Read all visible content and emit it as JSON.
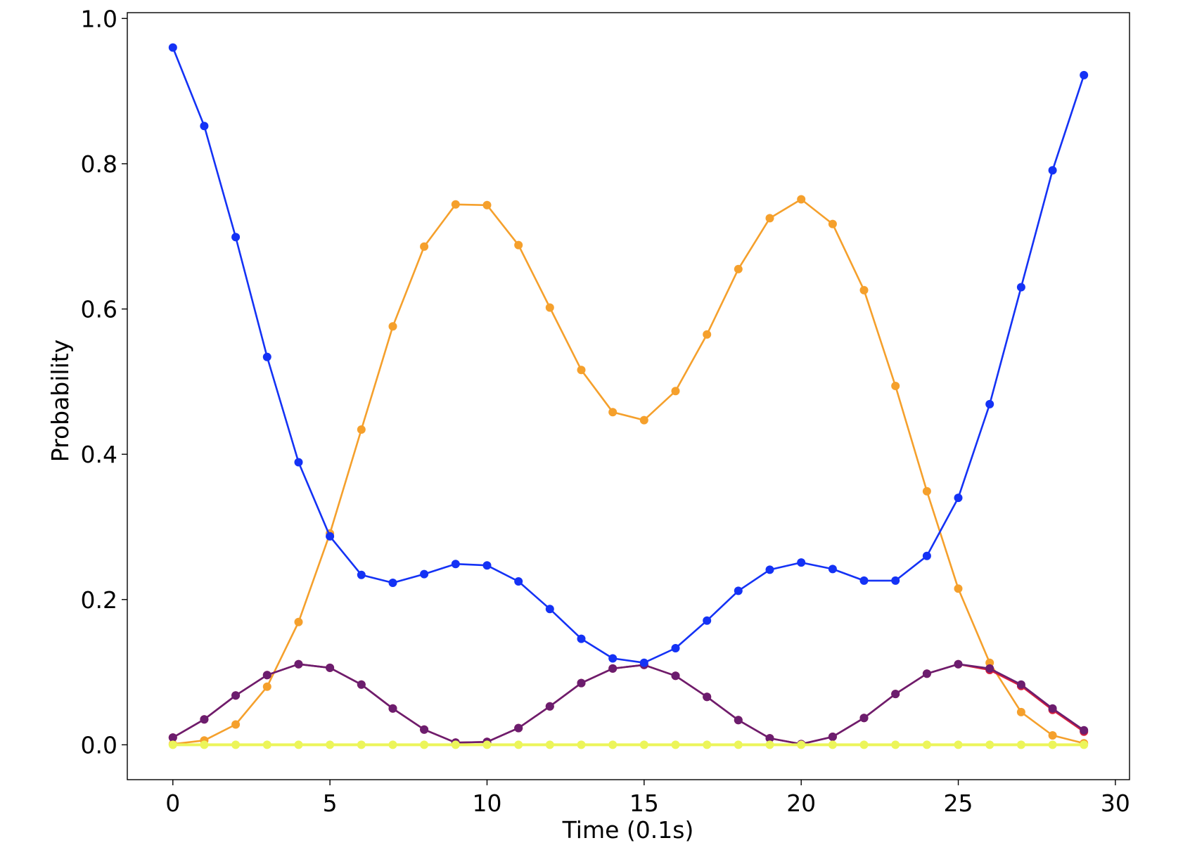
{
  "chart_data": {
    "type": "line",
    "title": "",
    "xlabel": "Time (0.1s)",
    "ylabel": "Probability",
    "xlim": [
      -1.45,
      30.45
    ],
    "ylim": [
      -0.048,
      1.008
    ],
    "xticks": [
      0,
      5,
      10,
      15,
      20,
      25,
      30
    ],
    "xtick_labels": [
      "0",
      "5",
      "10",
      "15",
      "20",
      "25",
      "30"
    ],
    "yticks": [
      0.0,
      0.2,
      0.4,
      0.6,
      0.8,
      1.0
    ],
    "ytick_labels": [
      "0.0",
      "0.2",
      "0.4",
      "0.6",
      "0.8",
      "1.0"
    ],
    "grid": false,
    "legend": "none",
    "x": [
      0,
      1,
      2,
      3,
      4,
      5,
      6,
      7,
      8,
      9,
      10,
      11,
      12,
      13,
      14,
      15,
      16,
      17,
      18,
      19,
      20,
      21,
      22,
      23,
      24,
      25,
      26,
      27,
      28,
      29
    ],
    "series": [
      {
        "color": "#f5a02c",
        "values": [
          0.001,
          0.006,
          0.028,
          0.08,
          0.169,
          0.291,
          0.434,
          0.576,
          0.686,
          0.744,
          0.743,
          0.688,
          0.602,
          0.516,
          0.458,
          0.447,
          0.487,
          0.565,
          0.655,
          0.725,
          0.751,
          0.717,
          0.626,
          0.494,
          0.349,
          0.215,
          0.113,
          0.045,
          0.013,
          0.002
        ]
      },
      {
        "color": "#d81e3c",
        "values": [
          0.01,
          0.035,
          0.068,
          0.096,
          0.111,
          0.106,
          0.083,
          0.05,
          0.021,
          0.003,
          0.004,
          0.023,
          0.053,
          0.085,
          0.105,
          0.11,
          0.095,
          0.066,
          0.034,
          0.009,
          0.001,
          0.011,
          0.037,
          0.07,
          0.098,
          0.111,
          0.103,
          0.081,
          0.048,
          0.018
        ]
      },
      {
        "color": "#6c1d6e",
        "values": [
          0.01,
          0.035,
          0.068,
          0.096,
          0.111,
          0.106,
          0.083,
          0.05,
          0.021,
          0.003,
          0.004,
          0.023,
          0.053,
          0.085,
          0.105,
          0.11,
          0.095,
          0.066,
          0.034,
          0.009,
          0.001,
          0.011,
          0.037,
          0.07,
          0.098,
          0.111,
          0.105,
          0.083,
          0.05,
          0.02
        ]
      },
      {
        "color": "#1432f5",
        "values": [
          0.96,
          0.852,
          0.699,
          0.534,
          0.389,
          0.287,
          0.234,
          0.223,
          0.235,
          0.249,
          0.247,
          0.225,
          0.187,
          0.146,
          0.119,
          0.113,
          0.133,
          0.171,
          0.212,
          0.241,
          0.251,
          0.242,
          0.226,
          0.226,
          0.26,
          0.34,
          0.469,
          0.63,
          0.791,
          0.922
        ]
      },
      {
        "color": "#ecf55a",
        "values": [
          0,
          0,
          0,
          0,
          0,
          0,
          0,
          0,
          0,
          0,
          0,
          0,
          0,
          0,
          0,
          0,
          0,
          0,
          0,
          0,
          0,
          0,
          0,
          0,
          0,
          0,
          0,
          0,
          0,
          0
        ]
      }
    ]
  }
}
